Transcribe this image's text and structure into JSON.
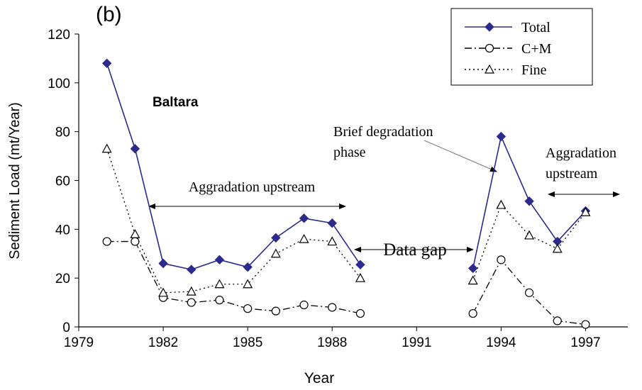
{
  "chart_data": {
    "type": "line",
    "xlabel": "Year",
    "ylabel": "Sediment Load (mt/Year)",
    "annotations": [
      [
        "(b)"
      ],
      [
        "Baltara"
      ],
      [
        "Aggradation upstream"
      ],
      [
        "Data gap"
      ],
      [
        "Brief degradation",
        "phase"
      ],
      [
        "Aggradation",
        "upstream"
      ]
    ],
    "x": [
      1980,
      1981,
      1982,
      1983,
      1984,
      1985,
      1986,
      1987,
      1988,
      1989,
      1993,
      1994,
      1995,
      1996,
      1997
    ],
    "series": [
      {
        "name": "Total",
        "color": "#2b2b8c",
        "marker": "diamond",
        "dash": "solid",
        "values": [
          108,
          73,
          26,
          23.5,
          27.5,
          24.5,
          36.5,
          44.5,
          42.5,
          25.5,
          24,
          78,
          51.5,
          35,
          47.5
        ]
      },
      {
        "name": "C+M",
        "color": "#000000",
        "marker": "circle",
        "dash": "dashdot",
        "values": [
          35,
          35,
          12,
          10,
          11,
          7.5,
          6.5,
          9,
          8,
          5.5,
          5.5,
          27.5,
          14,
          2.5,
          1
        ]
      },
      {
        "name": "Fine",
        "color": "#000000",
        "marker": "triangle",
        "dash": "dotted",
        "values": [
          73,
          38,
          14,
          14.5,
          17.5,
          17.5,
          30,
          36,
          35,
          20,
          19,
          50,
          37.5,
          32,
          47
        ]
      }
    ],
    "xlim": [
      1979,
      1998.5
    ],
    "xticks": [
      1979,
      1982,
      1985,
      1988,
      1991,
      1994,
      1997
    ],
    "ylim": [
      0,
      120
    ],
    "yticks": [
      0,
      20,
      40,
      60,
      80,
      100,
      120
    ],
    "grid": false,
    "legend": "upper right"
  }
}
